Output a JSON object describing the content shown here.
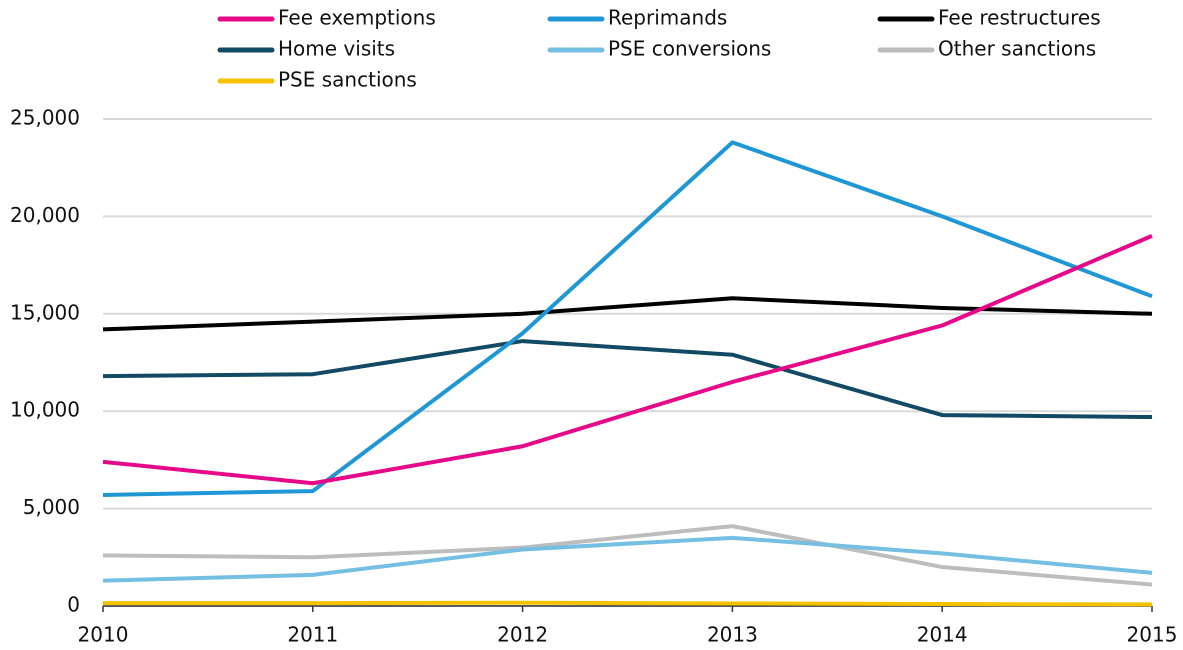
{
  "chart_data": {
    "type": "line",
    "x": [
      2010,
      2011,
      2012,
      2013,
      2014,
      2015
    ],
    "xlim": [
      2010,
      2015
    ],
    "xticks": [
      2010,
      2011,
      2012,
      2013,
      2014,
      2015
    ],
    "ylim": [
      0,
      25000
    ],
    "yticks": [
      0,
      {
        "value": 5000,
        "label": "5,000"
      },
      {
        "value": 10000,
        "label": "10,000"
      },
      {
        "value": 15000,
        "label": "15,000"
      },
      {
        "value": 20000,
        "label": "20,000"
      },
      {
        "value": 25000,
        "label": "25,000"
      }
    ],
    "grid": true,
    "legend": "top",
    "series": [
      {
        "name": "Fee exemptions",
        "color": "#e5098a",
        "values": [
          7400,
          6300,
          8200,
          11500,
          14400,
          19000
        ]
      },
      {
        "name": "Reprimands",
        "color": "#1f97d4",
        "values": [
          5700,
          5900,
          14000,
          23800,
          20000,
          15900
        ]
      },
      {
        "name": "Fee restructures",
        "color": "#000000",
        "values": [
          14200,
          14600,
          15000,
          15800,
          15300,
          15000
        ]
      },
      {
        "name": "Home visits",
        "color": "#124a63",
        "values": [
          11800,
          11900,
          13600,
          12900,
          9800,
          9700
        ]
      },
      {
        "name": "PSE conversions",
        "color": "#74bfe2",
        "values": [
          1300,
          1600,
          2900,
          3500,
          2700,
          1700
        ]
      },
      {
        "name": "Other sanctions",
        "color": "#bdbdbd",
        "values": [
          2600,
          2500,
          3000,
          4100,
          2000,
          1100
        ]
      },
      {
        "name": "PSE sanctions",
        "color": "#f5c200",
        "values": [
          150,
          150,
          170,
          130,
          100,
          80
        ]
      }
    ]
  }
}
